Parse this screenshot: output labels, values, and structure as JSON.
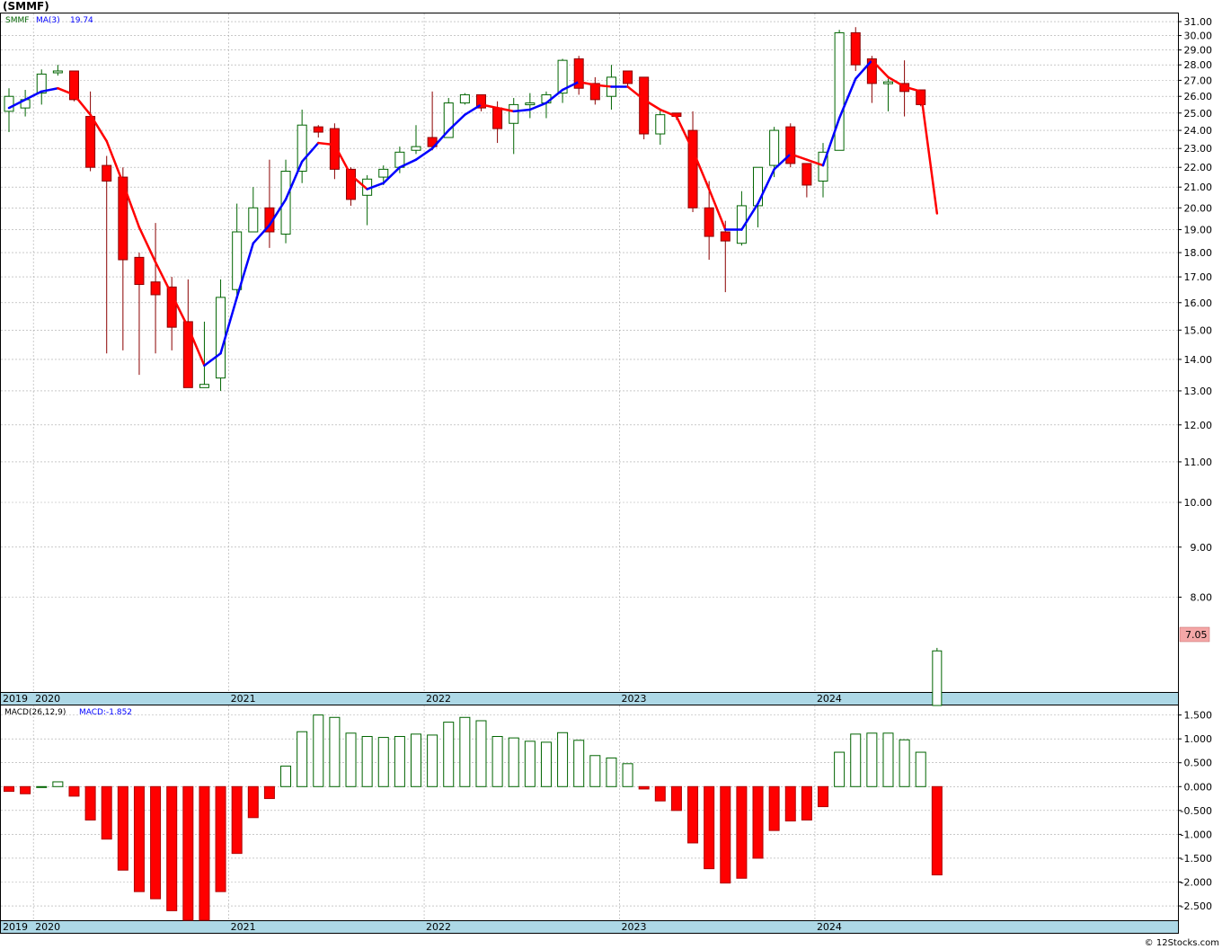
{
  "title": "(SMMF)",
  "legend": {
    "symbol": "SMMF",
    "ma_label": "MA(3)",
    "ma_value": "19.74",
    "macd_label": "MACD(26,12,9)",
    "macd_value": "MACD:-1.852"
  },
  "price_tag": "7.05",
  "credit": "© 12Stocks.com",
  "colors": {
    "up": "#006400",
    "down": "#ff0000",
    "ma_up": "#0000ff",
    "ma_down": "#ff0000",
    "axis_band": "#add8e6",
    "grid": "#a9a9a9",
    "price_tag_bg": "#f4a7a7"
  },
  "chart_data": [
    {
      "type": "candlestick",
      "title": "(SMMF)",
      "scale": "log",
      "ylim": [
        6.4,
        31.6
      ],
      "y_ticks": [
        "31.00",
        "30.00",
        "29.00",
        "28.00",
        "27.00",
        "26.00",
        "25.00",
        "24.00",
        "23.00",
        "22.00",
        "21.00",
        "20.00",
        "19.00",
        "18.00",
        "17.00",
        "16.00",
        "15.00",
        "14.00",
        "13.00",
        "12.00",
        "11.00",
        "10.00",
        "9.00",
        "8.00"
      ],
      "x_year_labels": [
        "2019",
        "2020",
        "2021",
        "2022",
        "2023",
        "2024"
      ],
      "frequency": "monthly",
      "start_period": "2019-11",
      "grid": true,
      "candles": [
        {
          "o": 25.1,
          "h": 26.5,
          "l": 23.9,
          "c": 26.0
        },
        {
          "o": 25.3,
          "h": 26.4,
          "l": 24.8,
          "c": 25.8
        },
        {
          "o": 26.2,
          "h": 27.7,
          "l": 25.5,
          "c": 27.4
        },
        {
          "o": 27.5,
          "h": 28.0,
          "l": 27.3,
          "c": 27.6
        },
        {
          "o": 27.6,
          "h": 27.6,
          "l": 25.7,
          "c": 25.8
        },
        {
          "o": 24.8,
          "h": 26.3,
          "l": 21.8,
          "c": 22.0
        },
        {
          "o": 22.1,
          "h": 22.6,
          "l": 14.2,
          "c": 21.3
        },
        {
          "o": 21.5,
          "h": 22.0,
          "l": 14.3,
          "c": 17.7
        },
        {
          "o": 17.8,
          "h": 18.0,
          "l": 13.5,
          "c": 16.7
        },
        {
          "o": 16.8,
          "h": 19.3,
          "l": 14.2,
          "c": 16.3
        },
        {
          "o": 16.6,
          "h": 17.0,
          "l": 14.3,
          "c": 15.1
        },
        {
          "o": 15.3,
          "h": 16.9,
          "l": 13.1,
          "c": 13.1
        },
        {
          "o": 13.1,
          "h": 15.3,
          "l": 13.1,
          "c": 13.2
        },
        {
          "o": 13.4,
          "h": 16.9,
          "l": 13.0,
          "c": 16.2
        },
        {
          "o": 16.5,
          "h": 20.2,
          "l": 16.3,
          "c": 18.9
        },
        {
          "o": 18.9,
          "h": 21.0,
          "l": 18.9,
          "c": 20.0
        },
        {
          "o": 20.0,
          "h": 22.4,
          "l": 18.2,
          "c": 18.9
        },
        {
          "o": 18.8,
          "h": 22.4,
          "l": 18.4,
          "c": 21.8
        },
        {
          "o": 21.8,
          "h": 25.2,
          "l": 21.2,
          "c": 24.3
        },
        {
          "o": 24.2,
          "h": 24.3,
          "l": 23.6,
          "c": 23.9
        },
        {
          "o": 24.1,
          "h": 24.4,
          "l": 21.4,
          "c": 21.9
        },
        {
          "o": 21.9,
          "h": 22.0,
          "l": 20.1,
          "c": 20.4
        },
        {
          "o": 20.6,
          "h": 21.6,
          "l": 19.2,
          "c": 21.4
        },
        {
          "o": 21.5,
          "h": 22.1,
          "l": 21.1,
          "c": 21.9
        },
        {
          "o": 22.0,
          "h": 23.1,
          "l": 21.7,
          "c": 22.8
        },
        {
          "o": 22.9,
          "h": 24.3,
          "l": 22.7,
          "c": 23.1
        },
        {
          "o": 23.6,
          "h": 26.3,
          "l": 22.9,
          "c": 23.1
        },
        {
          "o": 23.6,
          "h": 25.9,
          "l": 23.6,
          "c": 25.6
        },
        {
          "o": 25.6,
          "h": 26.2,
          "l": 25.5,
          "c": 26.1
        },
        {
          "o": 26.1,
          "h": 26.1,
          "l": 25.1,
          "c": 25.3
        },
        {
          "o": 25.3,
          "h": 25.7,
          "l": 23.3,
          "c": 24.1
        },
        {
          "o": 24.4,
          "h": 25.9,
          "l": 22.7,
          "c": 25.5
        },
        {
          "o": 25.5,
          "h": 26.2,
          "l": 24.7,
          "c": 25.6
        },
        {
          "o": 25.6,
          "h": 26.3,
          "l": 24.7,
          "c": 26.1
        },
        {
          "o": 26.2,
          "h": 28.4,
          "l": 25.6,
          "c": 28.3
        },
        {
          "o": 28.4,
          "h": 28.6,
          "l": 26.1,
          "c": 26.5
        },
        {
          "o": 26.8,
          "h": 27.2,
          "l": 25.5,
          "c": 25.8
        },
        {
          "o": 26.0,
          "h": 28.0,
          "l": 25.2,
          "c": 27.2
        },
        {
          "o": 27.6,
          "h": 27.6,
          "l": 26.6,
          "c": 26.8
        },
        {
          "o": 27.2,
          "h": 27.2,
          "l": 23.5,
          "c": 23.8
        },
        {
          "o": 23.8,
          "h": 25.2,
          "l": 23.2,
          "c": 24.9
        },
        {
          "o": 25.0,
          "h": 25.0,
          "l": 24.6,
          "c": 24.8
        },
        {
          "o": 24.0,
          "h": 25.1,
          "l": 19.8,
          "c": 20.0
        },
        {
          "o": 20.0,
          "h": 21.3,
          "l": 17.7,
          "c": 18.7
        },
        {
          "o": 18.9,
          "h": 19.4,
          "l": 16.4,
          "c": 18.5
        },
        {
          "o": 18.4,
          "h": 20.8,
          "l": 18.3,
          "c": 20.1
        },
        {
          "o": 20.1,
          "h": 22.0,
          "l": 19.1,
          "c": 22.0
        },
        {
          "o": 22.1,
          "h": 24.2,
          "l": 21.5,
          "c": 24.0
        },
        {
          "o": 24.2,
          "h": 24.4,
          "l": 22.0,
          "c": 22.2
        },
        {
          "o": 22.2,
          "h": 22.2,
          "l": 20.5,
          "c": 21.1
        },
        {
          "o": 21.3,
          "h": 23.3,
          "l": 20.5,
          "c": 22.8
        },
        {
          "o": 22.9,
          "h": 30.4,
          "l": 22.9,
          "c": 30.2
        },
        {
          "o": 30.2,
          "h": 30.6,
          "l": 27.6,
          "c": 28.0
        },
        {
          "o": 28.4,
          "h": 28.6,
          "l": 25.6,
          "c": 26.8
        },
        {
          "o": 26.9,
          "h": 27.1,
          "l": 25.1,
          "c": 26.9
        },
        {
          "o": 26.8,
          "h": 28.3,
          "l": 24.8,
          "c": 26.3
        },
        {
          "o": 26.4,
          "h": 26.4,
          "l": 25.4,
          "c": 25.5
        },
        {
          "o": 6.2,
          "h": 7.1,
          "l": 6.2,
          "c": 7.05
        }
      ],
      "ma3": [
        25.3,
        25.8,
        26.3,
        26.5,
        26.1,
        24.9,
        23.4,
        21.2,
        19.1,
        17.6,
        16.3,
        15.1,
        13.8,
        14.2,
        16.2,
        18.4,
        19.2,
        20.4,
        22.3,
        23.3,
        23.2,
        21.6,
        20.9,
        21.2,
        22.0,
        22.4,
        23.0,
        24.0,
        24.9,
        25.5,
        25.3,
        25.1,
        25.2,
        25.6,
        26.4,
        26.9,
        26.7,
        26.6,
        26.6,
        25.8,
        25.2,
        24.8,
        22.9,
        20.9,
        19.0,
        19.0,
        20.2,
        21.9,
        22.7,
        22.4,
        22.1,
        24.7,
        27.1,
        28.3,
        27.2,
        26.6,
        26.3,
        19.74
      ]
    },
    {
      "type": "bar",
      "title": "MACD(26,12,9)",
      "ylim": [
        -2.8,
        1.7
      ],
      "y_ticks": [
        "1.500",
        "1.000",
        "0.500",
        "0.000",
        "-0.500",
        "-1.000",
        "-1.500",
        "-2.000",
        "-2.500"
      ],
      "x_year_labels": [
        "2019",
        "2020",
        "2021",
        "2022",
        "2023",
        "2024"
      ],
      "values": [
        -0.1,
        -0.15,
        0.0,
        0.1,
        -0.2,
        -0.7,
        -1.1,
        -1.75,
        -2.2,
        -2.35,
        -2.6,
        -2.8,
        -2.8,
        -2.2,
        -1.4,
        -0.65,
        -0.25,
        0.43,
        1.15,
        1.5,
        1.45,
        1.12,
        1.05,
        1.03,
        1.05,
        1.1,
        1.08,
        1.35,
        1.45,
        1.38,
        1.05,
        1.02,
        0.95,
        0.93,
        1.13,
        0.97,
        0.65,
        0.6,
        0.48,
        -0.05,
        -0.3,
        -0.5,
        -1.18,
        -1.72,
        -2.02,
        -1.92,
        -1.5,
        -0.92,
        -0.72,
        -0.7,
        -0.42,
        0.72,
        1.1,
        1.12,
        1.12,
        0.98,
        0.72,
        -1.85
      ]
    }
  ]
}
